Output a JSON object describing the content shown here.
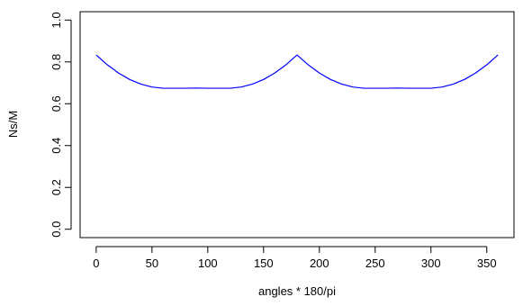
{
  "chart_data": {
    "type": "line",
    "title": "",
    "xlabel": "angles * 180/pi",
    "ylabel": "Ns/M",
    "xlim": [
      0,
      360
    ],
    "ylim": [
      0,
      1
    ],
    "xticks": [
      0,
      50,
      100,
      150,
      200,
      250,
      300,
      350
    ],
    "xtick_labels": [
      "0",
      "50",
      "100",
      "150",
      "200",
      "250",
      "300",
      "350"
    ],
    "yticks": [
      0,
      0.2,
      0.4,
      0.6,
      0.8,
      1.0
    ],
    "ytick_labels": [
      "0.0",
      "0.2",
      "0.4",
      "0.6",
      "0.8",
      "1.0"
    ],
    "grid": false,
    "legend": "none",
    "series": [
      {
        "color": "#0000ff",
        "x": [
          0,
          10,
          20,
          30,
          40,
          50,
          60,
          70,
          80,
          90,
          100,
          110,
          120,
          130,
          140,
          150,
          160,
          170,
          180,
          190,
          200,
          210,
          220,
          230,
          240,
          250,
          260,
          270,
          280,
          290,
          300,
          310,
          320,
          330,
          340,
          350,
          360
        ],
        "y": [
          0.833,
          0.786,
          0.747,
          0.716,
          0.694,
          0.68,
          0.674,
          0.674,
          0.674,
          0.675,
          0.674,
          0.674,
          0.674,
          0.68,
          0.694,
          0.716,
          0.747,
          0.786,
          0.833,
          0.786,
          0.747,
          0.716,
          0.694,
          0.68,
          0.674,
          0.674,
          0.674,
          0.675,
          0.674,
          0.674,
          0.674,
          0.68,
          0.694,
          0.716,
          0.747,
          0.786,
          0.833
        ]
      }
    ]
  }
}
